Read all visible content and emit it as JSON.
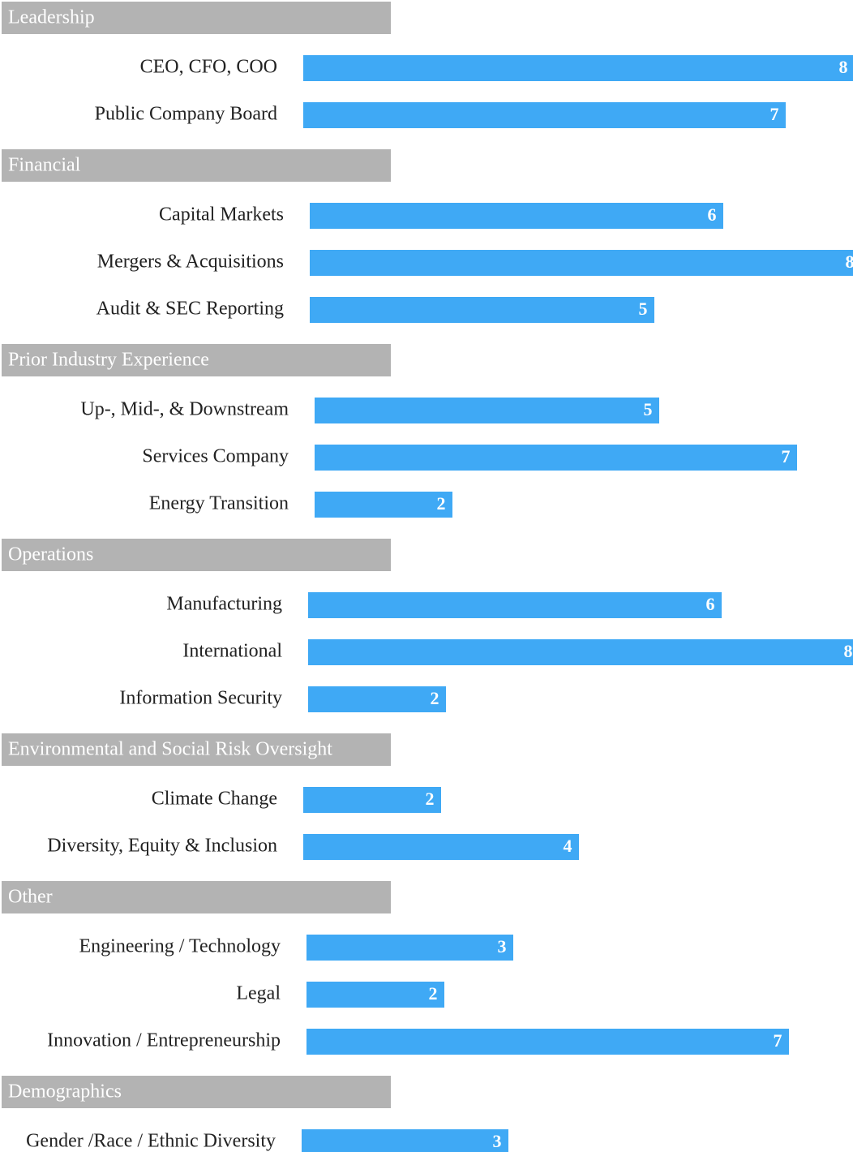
{
  "chart_data": {
    "type": "bar",
    "color": "#3fa9f5",
    "header_color": "#b3b3b3",
    "groups": [
      {
        "title": "Leadership",
        "categories": [
          "CEO, CFO, COO",
          "Public Company Board"
        ],
        "values": [
          8,
          7
        ]
      },
      {
        "title": "Financial",
        "categories": [
          "Capital Markets",
          "Mergers & Acquisitions",
          "Audit & SEC Reporting"
        ],
        "values": [
          6,
          8,
          5
        ]
      },
      {
        "title": "Prior Industry Experience",
        "categories": [
          "Up-, Mid-, & Downstream",
          "Services Company",
          "Energy Transition"
        ],
        "values": [
          5,
          7,
          2
        ]
      },
      {
        "title": "Operations",
        "categories": [
          "Manufacturing",
          "International",
          "Information Security"
        ],
        "values": [
          6,
          8,
          2
        ]
      },
      {
        "title": "Environmental and Social Risk Oversight",
        "categories": [
          "Climate Change",
          "Diversity, Equity & Inclusion"
        ],
        "values": [
          2,
          4
        ]
      },
      {
        "title": "Other",
        "categories": [
          "Engineering / Technology",
          "Legal",
          "Innovation / Entrepreneurship"
        ],
        "values": [
          3,
          2,
          7
        ]
      },
      {
        "title": "Demographics",
        "categories": [
          "Gender /Race / Ethnic Diversity"
        ],
        "values": [
          3
        ]
      }
    ]
  }
}
